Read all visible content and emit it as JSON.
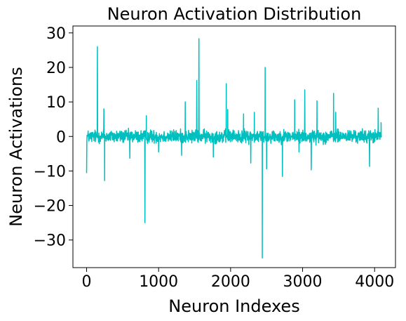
{
  "chart_data": {
    "type": "line",
    "title": "Neuron Activation Distribution",
    "xlabel": "Neuron Indexes",
    "ylabel": "Neuron Activations",
    "xlim": [
      -190,
      4290
    ],
    "ylim": [
      -38,
      32
    ],
    "xticks": [
      0,
      1000,
      2000,
      3000,
      4000
    ],
    "yticks": [
      -30,
      -20,
      -10,
      0,
      10,
      20,
      30
    ],
    "grid": false,
    "legend": "none",
    "noise_band": [
      -2.8,
      2.8
    ],
    "series": [
      {
        "color": "#00bfbf",
        "spikes": [
          {
            "x": 0,
            "y": -10.5
          },
          {
            "x": 150,
            "y": 26
          },
          {
            "x": 240,
            "y": 8
          },
          {
            "x": 250,
            "y": -12.8
          },
          {
            "x": 600,
            "y": -6.3
          },
          {
            "x": 810,
            "y": -25
          },
          {
            "x": 830,
            "y": 6
          },
          {
            "x": 1000,
            "y": -4.5
          },
          {
            "x": 1320,
            "y": -5.5
          },
          {
            "x": 1370,
            "y": 10
          },
          {
            "x": 1530,
            "y": 16.2
          },
          {
            "x": 1560,
            "y": 28.3
          },
          {
            "x": 1760,
            "y": -6
          },
          {
            "x": 1940,
            "y": 15.3
          },
          {
            "x": 1960,
            "y": 7.8
          },
          {
            "x": 2180,
            "y": 6.5
          },
          {
            "x": 2280,
            "y": -7.7
          },
          {
            "x": 2330,
            "y": 7
          },
          {
            "x": 2440,
            "y": -35.2
          },
          {
            "x": 2480,
            "y": 20
          },
          {
            "x": 2500,
            "y": -9.4
          },
          {
            "x": 2720,
            "y": -11.6
          },
          {
            "x": 2890,
            "y": 10.6
          },
          {
            "x": 2950,
            "y": -4.5
          },
          {
            "x": 3030,
            "y": 13.5
          },
          {
            "x": 3120,
            "y": -9.7
          },
          {
            "x": 3200,
            "y": 10.3
          },
          {
            "x": 3430,
            "y": 12.5
          },
          {
            "x": 3460,
            "y": 7
          },
          {
            "x": 3930,
            "y": -8.7
          },
          {
            "x": 4050,
            "y": 8.2
          },
          {
            "x": 4090,
            "y": 4
          }
        ]
      }
    ]
  }
}
